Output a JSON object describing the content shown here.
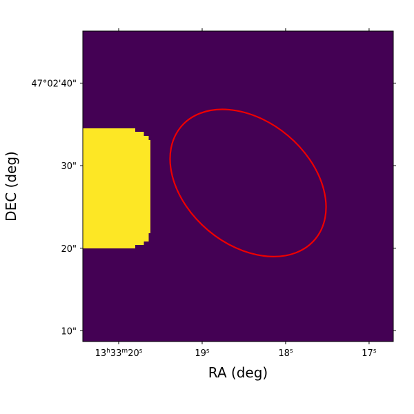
{
  "chart_data": {
    "type": "heatmap",
    "title": "",
    "xlabel": "RA (deg)",
    "ylabel": "DEC (deg)",
    "x_ticks": [
      {
        "ra_s": 20.0,
        "label_main": "13",
        "sup_h": "h",
        "label_min": "33",
        "sup_m": "m",
        "label_sec": "20",
        "sup_s": "s"
      },
      {
        "ra_s": 19.0,
        "label_main": "19",
        "sup_s": "s"
      },
      {
        "ra_s": 18.0,
        "label_main": "18",
        "sup_s": "s"
      },
      {
        "ra_s": 17.0,
        "label_main": "17",
        "sup_s": "s"
      }
    ],
    "y_ticks": [
      {
        "dec_arcsec": 40,
        "label": "47°02'40\""
      },
      {
        "dec_arcsec": 30,
        "label": "30\""
      },
      {
        "dec_arcsec": 20,
        "label": "20\""
      },
      {
        "dec_arcsec": 10,
        "label": "10\""
      }
    ],
    "xlim_ra_seconds": [
      20.43,
      16.71
    ],
    "ylim_dec_arcsec_offset": [
      8.7,
      46.3
    ],
    "background_color": "#440154",
    "highlight_color": "#fde725",
    "highlight_region": {
      "ra_s_from": 20.43,
      "dec_from": 20.0,
      "dec_to": 34.5,
      "ra_s_edge_profile": [
        {
          "dec_from": 20.0,
          "dec_to": 20.4,
          "ra_s": 19.8
        },
        {
          "dec_from": 20.4,
          "dec_to": 20.8,
          "ra_s": 19.7
        },
        {
          "dec_from": 20.8,
          "dec_to": 21.8,
          "ra_s": 19.64
        },
        {
          "dec_from": 21.8,
          "dec_to": 33.1,
          "ra_s": 19.62
        },
        {
          "dec_from": 33.1,
          "dec_to": 33.6,
          "ra_s": 19.64
        },
        {
          "dec_from": 33.6,
          "dec_to": 34.1,
          "ra_s": 19.7
        },
        {
          "dec_from": 34.1,
          "dec_to": 34.5,
          "ra_s": 19.8
        }
      ]
    },
    "ellipse": {
      "color": "#ee0000",
      "center_ra_s": 18.45,
      "center_dec_arcsec": 27.9,
      "semi_major_arcsec": 10.6,
      "semi_minor_arcsec": 7.5,
      "angle_deg": -40
    }
  }
}
